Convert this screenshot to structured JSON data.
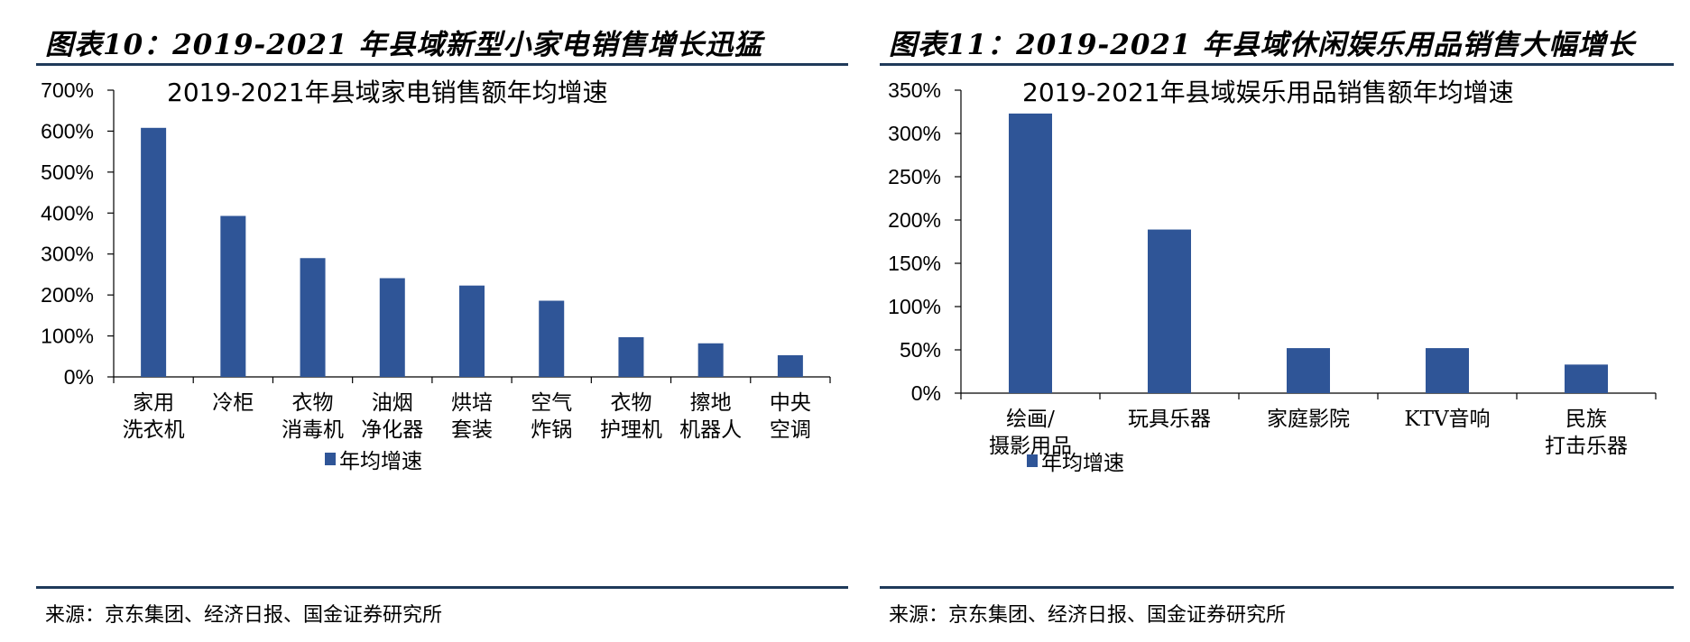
{
  "figures": [
    {
      "figure_title": "图表10：2019-2021 年县域新型小家电销售增长迅猛",
      "source": "来源：京东集团、经济日报、国金证券研究所"
    },
    {
      "figure_title": "图表11：2019-2021 年县域休闲娱乐用品销售大幅增长",
      "source": "来源：京东集团、经济日报、国金证券研究所"
    }
  ],
  "colors": {
    "bar": "#2f5597",
    "rule": "#1f3a5a",
    "axis": "#000000"
  },
  "chart_data": [
    {
      "type": "bar",
      "title": "2019-2021年县域家电销售额年均增速",
      "categories": [
        [
          "家用",
          "洗衣机"
        ],
        [
          "冷柜"
        ],
        [
          "衣物",
          "消毒机"
        ],
        [
          "油烟",
          "净化器"
        ],
        [
          "烘培",
          "套装"
        ],
        [
          "空气",
          "炸锅"
        ],
        [
          "衣物",
          "护理机"
        ],
        [
          "擦地",
          "机器人"
        ],
        [
          "中央",
          "空调"
        ]
      ],
      "series": [
        {
          "name": "年均增速",
          "values": [
            608,
            393,
            290,
            241,
            223,
            186,
            97,
            82,
            53
          ]
        }
      ],
      "ylim": [
        0,
        700
      ],
      "yticks": [
        0,
        100,
        200,
        300,
        400,
        500,
        600,
        700
      ],
      "ytick_labels": [
        "0%",
        "100%",
        "200%",
        "300%",
        "400%",
        "500%",
        "600%",
        "700%"
      ],
      "legend_position": "bottom",
      "grid": false
    },
    {
      "type": "bar",
      "title": "2019-2021年县域娱乐用品销售额年均增速",
      "categories": [
        [
          "绘画/",
          "摄影用品"
        ],
        [
          "玩具乐器"
        ],
        [
          "家庭影院"
        ],
        [
          "KTV音响"
        ],
        [
          "民族",
          "打击乐器"
        ]
      ],
      "series": [
        {
          "name": "年均增速",
          "values": [
            323,
            189,
            52,
            52,
            33
          ]
        }
      ],
      "ylim": [
        0,
        350
      ],
      "yticks": [
        0,
        50,
        100,
        150,
        200,
        250,
        300,
        350
      ],
      "ytick_labels": [
        "0%",
        "50%",
        "100%",
        "150%",
        "200%",
        "250%",
        "300%",
        "350%"
      ],
      "legend_position": "bottom",
      "grid": false
    }
  ]
}
